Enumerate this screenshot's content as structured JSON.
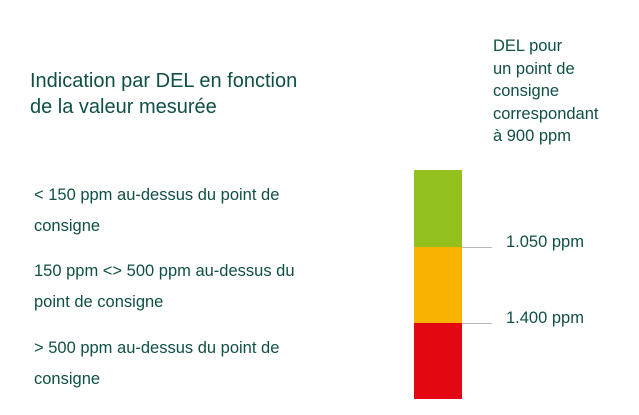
{
  "title": {
    "line1": "Indication par DEL en fonction",
    "line2": "de la valeur mesurée"
  },
  "led_header": {
    "lines": [
      "DEL pour",
      "un point de",
      "consigne",
      "correspondant",
      "à 900 ppm"
    ]
  },
  "levels": [
    {
      "line1": "< 150 ppm au-dessus du point de",
      "line2": "consigne",
      "color": "#93c01f"
    },
    {
      "line1": "150 ppm <> 500 ppm au-dessus du",
      "line2": "point de consigne",
      "color": "#f9b200"
    },
    {
      "line1": "> 500 ppm au-dessus du point de",
      "line2": "consigne",
      "color": "#e30613"
    }
  ],
  "thresholds": [
    {
      "label": "1.050 ppm"
    },
    {
      "label": "1.400 ppm"
    }
  ]
}
